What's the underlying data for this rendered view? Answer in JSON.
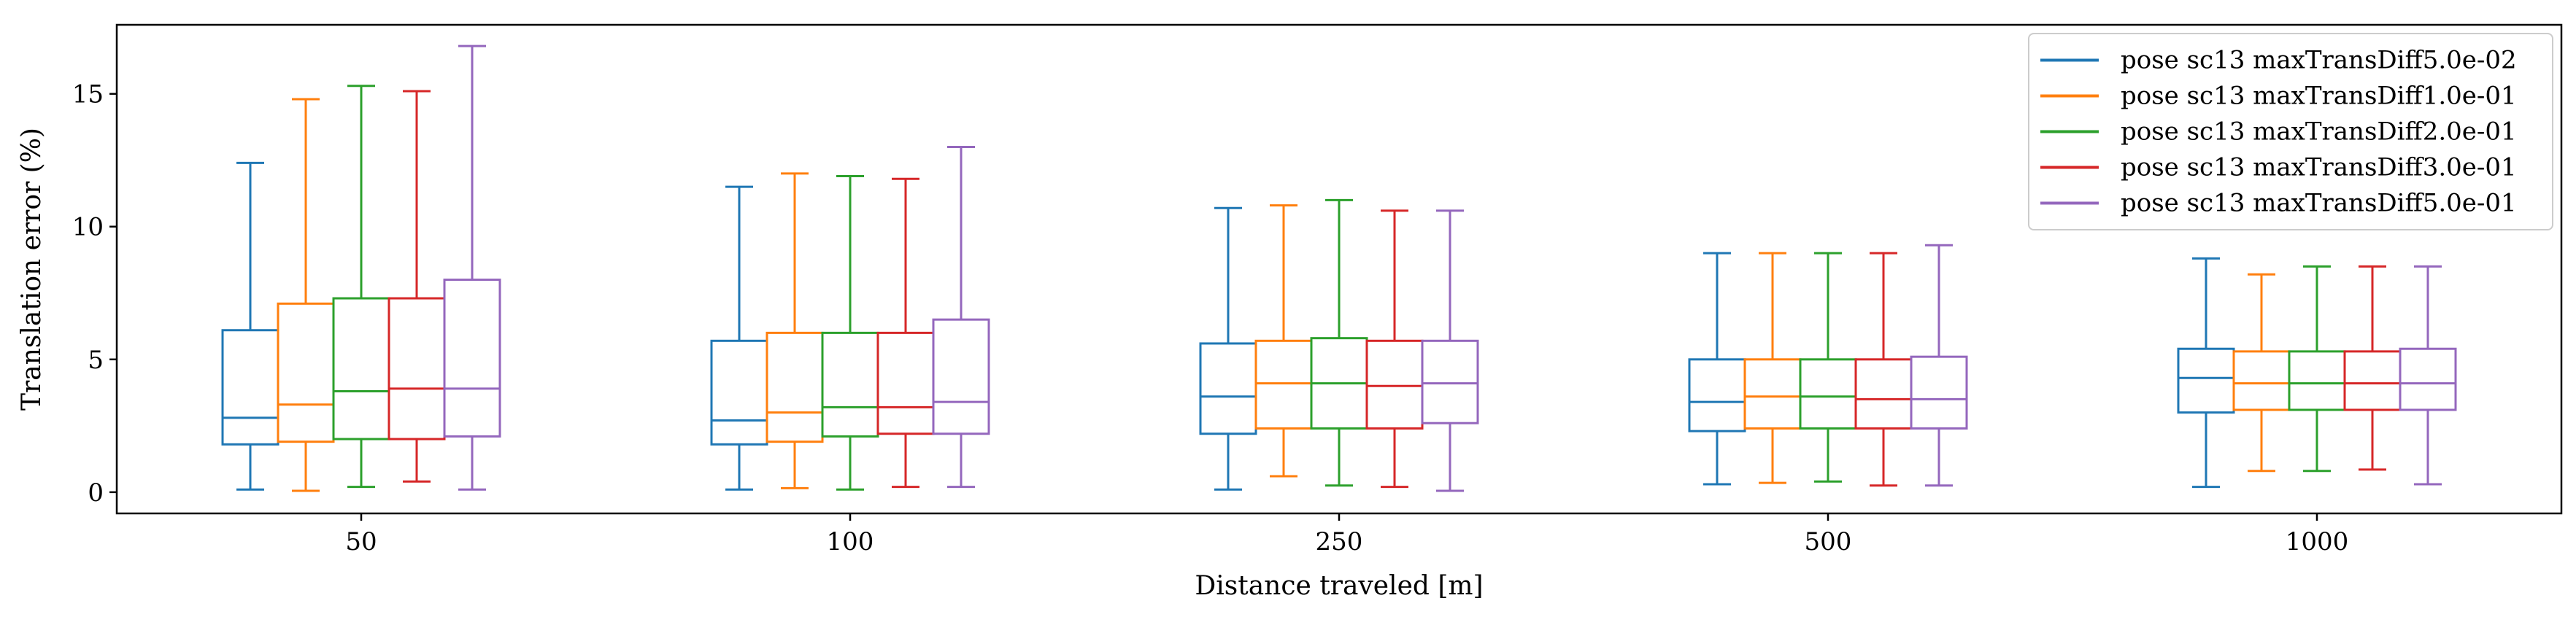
{
  "chart_data": {
    "type": "box",
    "xlabel": "Distance traveled [m]",
    "ylabel": "Translation error (%)",
    "categories": [
      "50",
      "100",
      "250",
      "500",
      "1000"
    ],
    "ylim": [
      -0.8,
      17.6
    ],
    "yticks": [
      "0",
      "5",
      "10",
      "15"
    ],
    "legend_position": "top-right",
    "series": [
      {
        "name": "pose sc13 maxTransDiff5.0e-02",
        "color": "#1f77b4",
        "boxes": [
          {
            "whislo": 0.1,
            "q1": 1.8,
            "med": 2.8,
            "q3": 6.1,
            "whishi": 12.4
          },
          {
            "whislo": 0.1,
            "q1": 1.8,
            "med": 2.7,
            "q3": 5.7,
            "whishi": 11.5
          },
          {
            "whislo": 0.1,
            "q1": 2.2,
            "med": 3.6,
            "q3": 5.6,
            "whishi": 10.7
          },
          {
            "whislo": 0.3,
            "q1": 2.3,
            "med": 3.4,
            "q3": 5.0,
            "whishi": 9.0
          },
          {
            "whislo": 0.2,
            "q1": 3.0,
            "med": 4.3,
            "q3": 5.4,
            "whishi": 8.8
          }
        ]
      },
      {
        "name": "pose sc13 maxTransDiff1.0e-01",
        "color": "#ff7f0e",
        "boxes": [
          {
            "whislo": 0.05,
            "q1": 1.9,
            "med": 3.3,
            "q3": 7.1,
            "whishi": 14.8
          },
          {
            "whislo": 0.15,
            "q1": 1.9,
            "med": 3.0,
            "q3": 6.0,
            "whishi": 12.0
          },
          {
            "whislo": 0.6,
            "q1": 2.4,
            "med": 4.1,
            "q3": 5.7,
            "whishi": 10.8
          },
          {
            "whislo": 0.35,
            "q1": 2.4,
            "med": 3.6,
            "q3": 5.0,
            "whishi": 9.0
          },
          {
            "whislo": 0.8,
            "q1": 3.1,
            "med": 4.1,
            "q3": 5.3,
            "whishi": 8.2
          }
        ]
      },
      {
        "name": "pose sc13 maxTransDiff2.0e-01",
        "color": "#2ca02c",
        "boxes": [
          {
            "whislo": 0.2,
            "q1": 2.0,
            "med": 3.8,
            "q3": 7.3,
            "whishi": 15.3
          },
          {
            "whislo": 0.1,
            "q1": 2.1,
            "med": 3.2,
            "q3": 6.0,
            "whishi": 11.9
          },
          {
            "whislo": 0.25,
            "q1": 2.4,
            "med": 4.1,
            "q3": 5.8,
            "whishi": 11.0
          },
          {
            "whislo": 0.4,
            "q1": 2.4,
            "med": 3.6,
            "q3": 5.0,
            "whishi": 9.0
          },
          {
            "whislo": 0.8,
            "q1": 3.1,
            "med": 4.1,
            "q3": 5.3,
            "whishi": 8.5
          }
        ]
      },
      {
        "name": "pose sc13 maxTransDiff3.0e-01",
        "color": "#d62728",
        "boxes": [
          {
            "whislo": 0.4,
            "q1": 2.0,
            "med": 3.9,
            "q3": 7.3,
            "whishi": 15.1
          },
          {
            "whislo": 0.2,
            "q1": 2.2,
            "med": 3.2,
            "q3": 6.0,
            "whishi": 11.8
          },
          {
            "whislo": 0.2,
            "q1": 2.4,
            "med": 4.0,
            "q3": 5.7,
            "whishi": 10.6
          },
          {
            "whislo": 0.25,
            "q1": 2.4,
            "med": 3.5,
            "q3": 5.0,
            "whishi": 9.0
          },
          {
            "whislo": 0.85,
            "q1": 3.1,
            "med": 4.1,
            "q3": 5.3,
            "whishi": 8.5
          }
        ]
      },
      {
        "name": "pose sc13 maxTransDiff5.0e-01",
        "color": "#9467bd",
        "boxes": [
          {
            "whislo": 0.1,
            "q1": 2.1,
            "med": 3.9,
            "q3": 8.0,
            "whishi": 16.8
          },
          {
            "whislo": 0.2,
            "q1": 2.2,
            "med": 3.4,
            "q3": 6.5,
            "whishi": 13.0
          },
          {
            "whislo": 0.05,
            "q1": 2.6,
            "med": 4.1,
            "q3": 5.7,
            "whishi": 10.6
          },
          {
            "whislo": 0.25,
            "q1": 2.4,
            "med": 3.5,
            "q3": 5.1,
            "whishi": 9.3
          },
          {
            "whislo": 0.3,
            "q1": 3.1,
            "med": 4.1,
            "q3": 5.4,
            "whishi": 8.5
          }
        ]
      }
    ]
  }
}
